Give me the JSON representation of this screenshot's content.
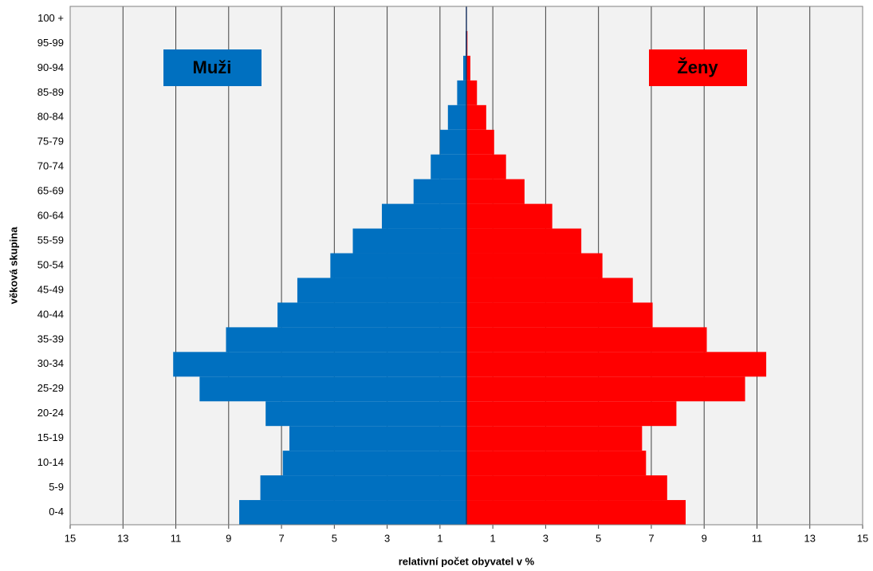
{
  "chart_data": {
    "type": "pyramid",
    "xlabel": "relativní počet obyvatel v %",
    "ylabel": "věková skupina",
    "categories": [
      "0-4",
      "5-9",
      "10-14",
      "15-19",
      "20-24",
      "25-29",
      "30-34",
      "35-39",
      "40-44",
      "45-49",
      "50-54",
      "55-59",
      "60-64",
      "65-69",
      "70-74",
      "75-79",
      "80-84",
      "85-89",
      "90-94",
      "95-99",
      "100 +"
    ],
    "series": [
      {
        "name": "Muži",
        "color": "#0070c0",
        "values": [
          -8.6,
          -7.8,
          -6.95,
          -6.7,
          -7.6,
          -10.1,
          -11.1,
          -9.1,
          -7.15,
          -6.4,
          -5.15,
          -4.3,
          -3.2,
          -2.0,
          -1.35,
          -1.0,
          -0.7,
          -0.35,
          -0.12,
          -0.03,
          -0.01
        ]
      },
      {
        "name": "Ženy",
        "color": "#ff0000",
        "values": [
          8.3,
          7.6,
          6.8,
          6.65,
          7.95,
          10.55,
          11.35,
          9.1,
          7.05,
          6.3,
          5.15,
          4.35,
          3.25,
          2.2,
          1.5,
          1.05,
          0.75,
          0.4,
          0.15,
          0.04,
          0.01
        ]
      }
    ],
    "xlim": [
      -15,
      15
    ],
    "xticks": [
      {
        "value": -15,
        "label": "15"
      },
      {
        "value": -13,
        "label": "13"
      },
      {
        "value": -11,
        "label": "11"
      },
      {
        "value": -9,
        "label": "9"
      },
      {
        "value": -7,
        "label": "7"
      },
      {
        "value": -5,
        "label": "5"
      },
      {
        "value": -3,
        "label": "3"
      },
      {
        "value": -1,
        "label": "1"
      },
      1,
      3,
      5,
      7,
      9,
      11,
      13,
      15
    ],
    "grid": true
  }
}
